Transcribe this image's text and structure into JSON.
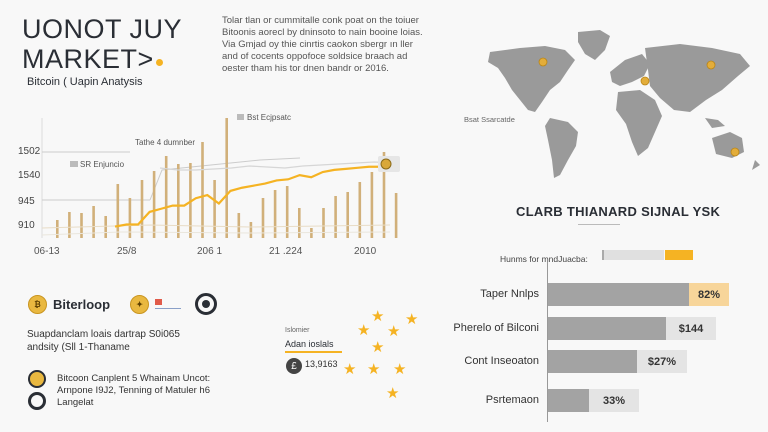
{
  "header": {
    "title_line1": "UONOT JUY",
    "title_line2": "MARKET>",
    "subtitle": "Bitcoin ( Uapin Anatysis",
    "intro": "Tolar tlan or cummitalle conk poat on the toiuer Bitoonis aorecl by dninsoto to nain booine loias. Via Gmjad oy thie cinrtis caokon sbergr ın ller and of cocents oppofoce soldsice braach ad oester tham his tor dnen bandr or 2016."
  },
  "chart_data": {
    "type": "bar",
    "title": "",
    "xlabel": "",
    "ylabel": "",
    "y_ticks": [
      "1502",
      "1540",
      "945",
      "910"
    ],
    "x_ticks": [
      "06-13",
      "25/8",
      "206 1",
      "21 .224",
      "2010"
    ],
    "annotations": [
      "Tathe 4 dumnber",
      "SR Enjuncio",
      "Bst Ecjpsatc"
    ],
    "series": [
      {
        "name": "volume-bars",
        "type": "bar",
        "values": [
          18,
          26,
          25,
          32,
          22,
          54,
          40,
          58,
          67,
          82,
          74,
          75,
          96,
          58,
          120,
          25,
          16,
          40,
          48,
          52,
          30,
          10,
          30,
          42,
          46,
          56,
          66,
          86,
          45
        ]
      },
      {
        "name": "price-line",
        "type": "line",
        "color": "#f5b323",
        "values": [
          8,
          10,
          10,
          22,
          25,
          28,
          28,
          35,
          38,
          30,
          42,
          45,
          47,
          49,
          52,
          53,
          57,
          55,
          60,
          62,
          63,
          64,
          65,
          65,
          64
        ]
      },
      {
        "name": "reference-line",
        "type": "line",
        "color": "#cccccc",
        "values": [
          72,
          70,
          70,
          71,
          72,
          74,
          73,
          72,
          74,
          75,
          76,
          77,
          78,
          77
        ]
      }
    ]
  },
  "map": {
    "label": "Bsat Ssarcatde",
    "markers": [
      {
        "region": "north-america"
      },
      {
        "region": "europe"
      },
      {
        "region": "russia"
      },
      {
        "region": "australia"
      }
    ]
  },
  "signal": {
    "title": "CLARB THIANARD SIJNAL YSK",
    "legend_label": "Hunms for mndJuacba:",
    "colors": {
      "accent": "#f5b323",
      "bar": "#a3a3a3",
      "value_bg": "#e4e4e4",
      "highlight_bg": "#f7d59a"
    },
    "bars": [
      {
        "label": "Taper Nnlps",
        "value": "82%",
        "fill_pct": 76
      },
      {
        "label": "Pherelo of Bilconi",
        "value": "$144",
        "fill_pct": 64
      },
      {
        "label": "Cont Inseoaton",
        "value": "$27%",
        "fill_pct": 48
      },
      {
        "label": "Psrtemaon",
        "value": "33%",
        "fill_pct": 22
      }
    ]
  },
  "bottom_left": {
    "brand": "Biterloop",
    "description": "Suapdanclam loais dartrap S0i065 andsity (Sll 1-Thaname",
    "list_text": "Bitcoon Canplent 5 Whainam Uncot: Arnpone I9J2, Tenning of Matuler h6 Langelat"
  },
  "ratings": {
    "small_label": "Islomier",
    "label": "Adan ioslals",
    "value": "13,9163",
    "icon": "£"
  }
}
